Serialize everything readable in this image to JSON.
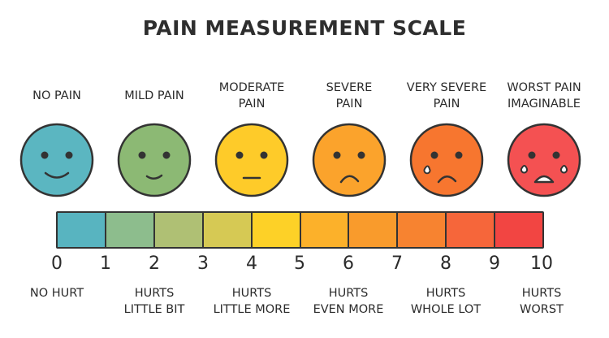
{
  "title": "PAIN MEASUREMENT SCALE",
  "colors": {
    "segments": [
      "#58b4c0",
      "#8dbd8d",
      "#afc074",
      "#d6c954",
      "#fdd127",
      "#fcb12a",
      "#f99b2c",
      "#f78330",
      "#f6663a",
      "#f24542"
    ],
    "faces": [
      "#5bb6c1",
      "#8cb974",
      "#fecb29",
      "#fba32c",
      "#f7762f",
      "#f45152"
    ],
    "outline": "#333333"
  },
  "levels": [
    {
      "lines": [
        "NO PAIN"
      ],
      "face_icon": "smiling-face-icon"
    },
    {
      "lines": [
        "MILD PAIN"
      ],
      "face_icon": "slight-smile-face-icon"
    },
    {
      "lines": [
        "MODERATE",
        "PAIN"
      ],
      "face_icon": "neutral-face-icon"
    },
    {
      "lines": [
        "SEVERE",
        "PAIN"
      ],
      "face_icon": "frowning-face-icon"
    },
    {
      "lines": [
        "VERY SEVERE",
        "PAIN"
      ],
      "face_icon": "crying-face-icon"
    },
    {
      "lines": [
        "WORST PAIN",
        "IMAGINABLE"
      ],
      "face_icon": "crying-open-mouth-face-icon"
    }
  ],
  "scale_numbers": [
    "0",
    "1",
    "2",
    "3",
    "4",
    "5",
    "6",
    "7",
    "8",
    "9",
    "10"
  ],
  "hurt_labels": [
    {
      "lines": [
        "NO HURT"
      ]
    },
    {
      "lines": [
        "HURTS",
        "LITTLE BIT"
      ]
    },
    {
      "lines": [
        "HURTS",
        "LITTLE MORE"
      ]
    },
    {
      "lines": [
        "HURTS",
        "EVEN MORE"
      ]
    },
    {
      "lines": [
        "HURTS",
        "WHOLE LOT"
      ]
    },
    {
      "lines": [
        "HURTS",
        "WORST"
      ]
    }
  ]
}
